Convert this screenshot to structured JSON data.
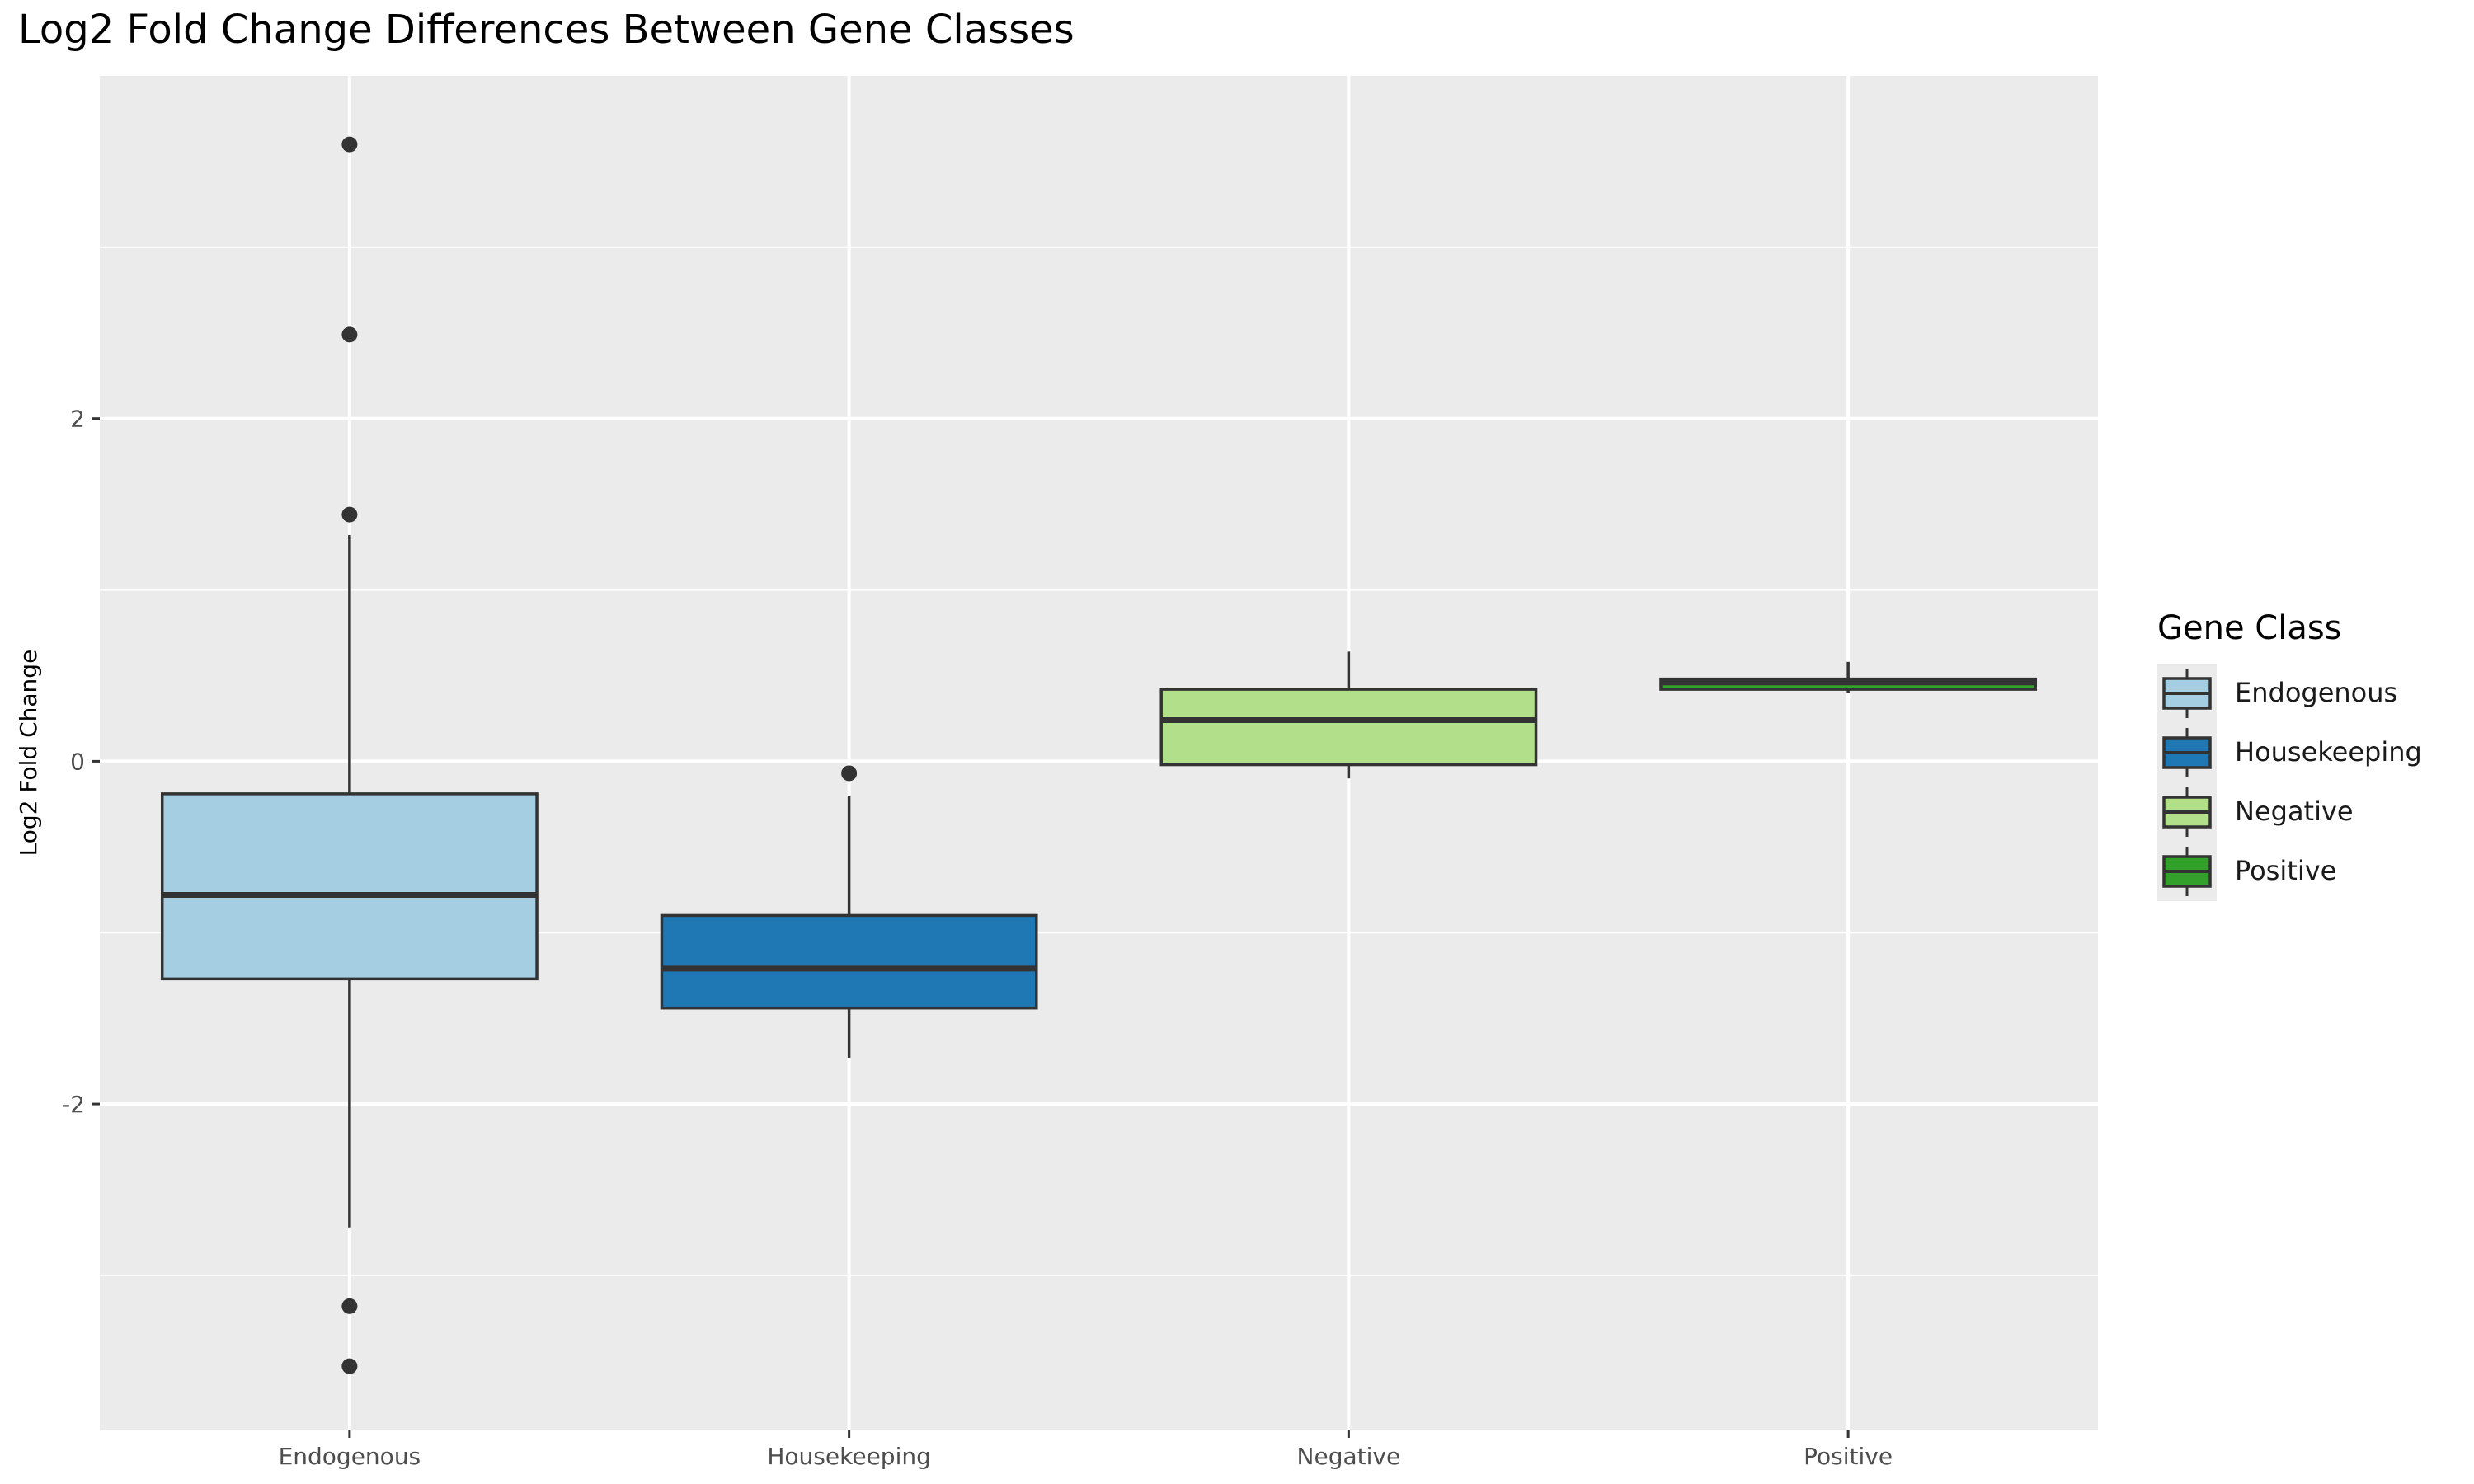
{
  "chart_data": {
    "type": "box",
    "title": "Log2 Fold Change Differences Between Gene Classes",
    "xlabel": "",
    "ylabel": "Log2 Fold Change",
    "ylim": [
      -3.9,
      4.0
    ],
    "y_ticks": [
      -2,
      0,
      2
    ],
    "y_tick_labels": [
      "-2",
      "0",
      "2"
    ],
    "y_minor_ticks": [
      -3,
      -1,
      1,
      3
    ],
    "grid": true,
    "legend": {
      "title": "Gene Class",
      "placement": "right"
    },
    "categories": [
      "Endogenous",
      "Housekeeping",
      "Negative",
      "Positive"
    ],
    "series": [
      {
        "name": "Endogenous",
        "color": "#a6cee3",
        "whisker_low": -2.72,
        "q1": -1.27,
        "median": -0.78,
        "q3": -0.19,
        "whisker_high": 1.32,
        "outliers": [
          3.6,
          2.49,
          1.44,
          -3.18,
          -3.53
        ]
      },
      {
        "name": "Housekeeping",
        "color": "#1f78b4",
        "whisker_low": -1.73,
        "q1": -1.44,
        "median": -1.21,
        "q3": -0.9,
        "whisker_high": -0.2,
        "outliers": [
          -0.07
        ]
      },
      {
        "name": "Negative",
        "color": "#b2df8a",
        "whisker_low": -0.1,
        "q1": -0.02,
        "median": 0.24,
        "q3": 0.42,
        "whisker_high": 0.64,
        "outliers": []
      },
      {
        "name": "Positive",
        "color": "#33a02c",
        "whisker_low": 0.4,
        "q1": 0.42,
        "median": 0.46,
        "q3": 0.48,
        "whisker_high": 0.58,
        "outliers": []
      }
    ]
  }
}
